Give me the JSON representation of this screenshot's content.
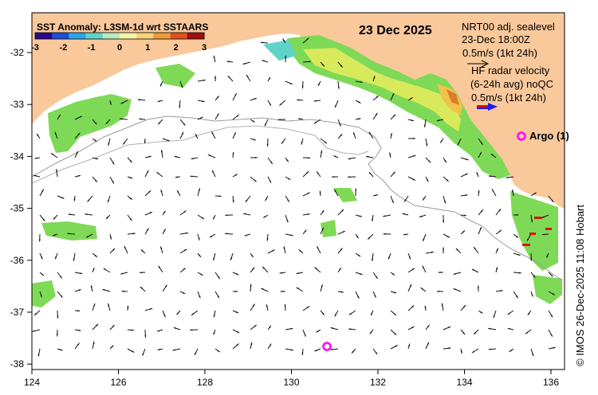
{
  "legend": {
    "title": "SST Anomaly: L3SM-1d wrt SSTAARS",
    "ticks": [
      "-3",
      "-2",
      "-1",
      "0",
      "1",
      "2",
      "3"
    ],
    "colors": [
      "#2a0a8a",
      "#1f4fd8",
      "#2fa4e8",
      "#5fd3c8",
      "#b8ecc0",
      "#f2f5a8",
      "#f7d27a",
      "#f09a3c",
      "#e0521c",
      "#a01010"
    ]
  },
  "date": "23 Dec 2025",
  "sealevel": {
    "line1": "NRT00 adj. sealevel",
    "line2": "23-Dec 18:00Z",
    "line3": "0.5m/s (1kt 24h)"
  },
  "hf_radar": {
    "line1": "HF radar velocity",
    "line2": "(6-24h avg) noQC",
    "line3": "0.5m/s (1kt 24h)"
  },
  "argo_label": "Argo (1)",
  "credit": "© IMOS 26-Dec-2025 11:08 Hobart",
  "axes": {
    "x_ticks": [
      "124",
      "126",
      "128",
      "130",
      "132",
      "134",
      "136"
    ],
    "y_ticks": [
      "-32",
      "-33",
      "-34",
      "-35",
      "-36",
      "-37",
      "-38"
    ]
  },
  "colors": {
    "land": "#f9c89b",
    "ocean": "#ffffff",
    "hf_arrow": "#1a1aff",
    "argo": "#ff00ff",
    "shelf": "#9a9a9a"
  }
}
